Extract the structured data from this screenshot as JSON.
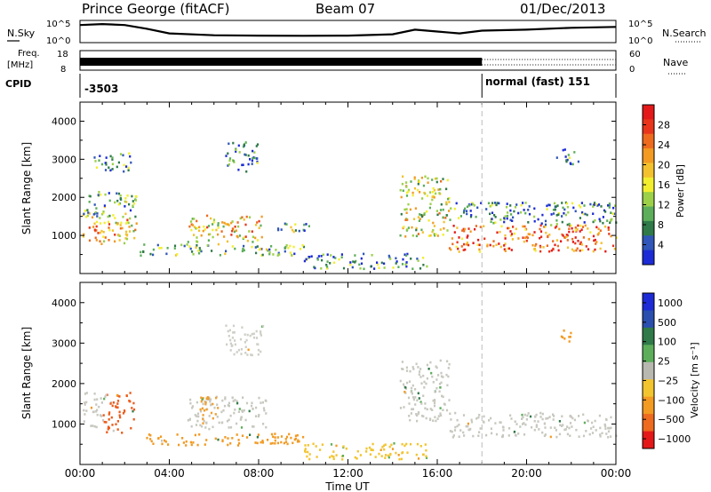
{
  "header": {
    "station": "Prince George (fitACF)",
    "beam": "Beam 07",
    "date": "01/Dec/2013"
  },
  "noise_panel": {
    "left_label": "N.Sky",
    "right_label": "N.Search",
    "left_ticks": [
      "10^5",
      "10^0"
    ],
    "right_ticks": [
      "10^5",
      "10^0"
    ]
  },
  "freq_panel": {
    "left_label_1": "Freq.",
    "left_label_2": "[MHz]",
    "right_label": "Nave",
    "left_ticks": [
      "18",
      "8"
    ],
    "right_ticks": [
      "60",
      "0"
    ]
  },
  "cpid_panel": {
    "label": "CPID",
    "mode_1": "-3503",
    "mode_2": "normal (fast) 151"
  },
  "time_axis": {
    "label": "Time UT",
    "ticks": [
      "00:00",
      "04:00",
      "08:00",
      "12:00",
      "16:00",
      "20:00",
      "00:00"
    ]
  },
  "chart_data": [
    {
      "type": "heatmap",
      "name": "power",
      "ylabel": "Slant Range [km]",
      "ylim": [
        0,
        4500
      ],
      "yticks": [
        "1000",
        "2000",
        "3000",
        "4000"
      ],
      "xlim": [
        0,
        24
      ],
      "colorbar": {
        "label": "Power [dB]",
        "ticks": [
          "4",
          "8",
          "12",
          "16",
          "20",
          "24",
          "28"
        ],
        "colors": [
          "#1c2bd6",
          "#2f56b8",
          "#2f7a48",
          "#5cae5a",
          "#9bd048",
          "#f2ee2e",
          "#f3c12e",
          "#f29a22",
          "#ee6a1e",
          "#e8351c",
          "#e41818"
        ]
      },
      "echo_regions": [
        {
          "t0": 0.1,
          "t1": 2.5,
          "r0": 800,
          "r1": 1600,
          "level": 0.6
        },
        {
          "t0": 0.1,
          "t1": 2.5,
          "r0": 1500,
          "r1": 2200,
          "level": 0.25
        },
        {
          "t0": 0.6,
          "t1": 2.3,
          "r0": 2700,
          "r1": 3200,
          "level": 0.15
        },
        {
          "t0": 2.6,
          "t1": 10.0,
          "r0": 500,
          "r1": 800,
          "level": 0.3
        },
        {
          "t0": 4.8,
          "t1": 8.2,
          "r0": 850,
          "r1": 1550,
          "level": 0.55
        },
        {
          "t0": 6.5,
          "t1": 8.0,
          "r0": 2700,
          "r1": 3500,
          "level": 0.2
        },
        {
          "t0": 8.7,
          "t1": 10.3,
          "r0": 1050,
          "r1": 1350,
          "level": 0.3
        },
        {
          "t0": 10.0,
          "t1": 15.5,
          "r0": 150,
          "r1": 550,
          "level": 0.2
        },
        {
          "t0": 14.3,
          "t1": 16.5,
          "r0": 1000,
          "r1": 2600,
          "level": 0.5
        },
        {
          "t0": 16.5,
          "t1": 24.0,
          "r0": 600,
          "r1": 1300,
          "level": 0.75
        },
        {
          "t0": 16.5,
          "t1": 24.0,
          "r0": 1300,
          "r1": 1900,
          "level": 0.2
        },
        {
          "t0": 21.3,
          "t1": 22.3,
          "r0": 2900,
          "r1": 3300,
          "level": 0.2
        }
      ]
    },
    {
      "type": "heatmap",
      "name": "velocity",
      "ylabel": "Slant Range [km]",
      "ylim": [
        0,
        4500
      ],
      "yticks": [
        "1000",
        "2000",
        "3000",
        "4000"
      ],
      "xlim": [
        0,
        24
      ],
      "colorbar": {
        "label": "Velocity [m s⁻¹]",
        "ticks": [
          "1000",
          "500",
          "100",
          "25",
          "−25",
          "−100",
          "−500",
          "−1000"
        ],
        "colors": [
          "#1c2bd6",
          "#2a4fae",
          "#2f7a48",
          "#5cae5a",
          "#b8b8b0",
          "#f2c42e",
          "#f29a22",
          "#ee6a1e",
          "#e41818"
        ]
      },
      "echo_regions": [
        {
          "t0": 0.1,
          "t1": 1.0,
          "r0": 900,
          "r1": 1800,
          "color": "#c8c8c0"
        },
        {
          "t0": 1.0,
          "t1": 2.4,
          "r0": 800,
          "r1": 1800,
          "color": "#ee5a1a"
        },
        {
          "t0": 2.5,
          "t1": 10.0,
          "r0": 500,
          "r1": 800,
          "color": "#f29a22"
        },
        {
          "t0": 4.8,
          "t1": 8.3,
          "r0": 900,
          "r1": 1700,
          "color": "#c8c8c0"
        },
        {
          "t0": 5.3,
          "t1": 6.2,
          "r0": 1000,
          "r1": 1700,
          "color": "#f0a030"
        },
        {
          "t0": 6.5,
          "t1": 8.2,
          "r0": 2700,
          "r1": 3500,
          "color": "#cfcfc8"
        },
        {
          "t0": 10.0,
          "t1": 15.5,
          "r0": 150,
          "r1": 550,
          "color": "#f2c42e"
        },
        {
          "t0": 14.3,
          "t1": 16.5,
          "r0": 1100,
          "r1": 2600,
          "color": "#c8c8c0"
        },
        {
          "t0": 16.5,
          "t1": 24.0,
          "r0": 700,
          "r1": 1300,
          "color": "#c8c8c0"
        },
        {
          "t0": 21.5,
          "t1": 22.1,
          "r0": 3000,
          "r1": 3350,
          "color": "#f29a22"
        }
      ]
    },
    {
      "type": "line",
      "name": "noise",
      "x": [
        0,
        1,
        2,
        3,
        4,
        6,
        8,
        10,
        12,
        14,
        15,
        16,
        17,
        18,
        20,
        22,
        24
      ],
      "y": [
        0.85,
        0.9,
        0.85,
        0.65,
        0.4,
        0.3,
        0.28,
        0.27,
        0.28,
        0.35,
        0.6,
        0.5,
        0.4,
        0.55,
        0.6,
        0.7,
        0.75
      ]
    },
    {
      "type": "line",
      "name": "frequency",
      "segments": [
        {
          "t0": 0.0,
          "t1": 18.0,
          "style": "solid"
        },
        {
          "t0": 18.0,
          "t1": 24.0,
          "style": "dotted"
        }
      ]
    }
  ],
  "mode_change_time": 18.0
}
